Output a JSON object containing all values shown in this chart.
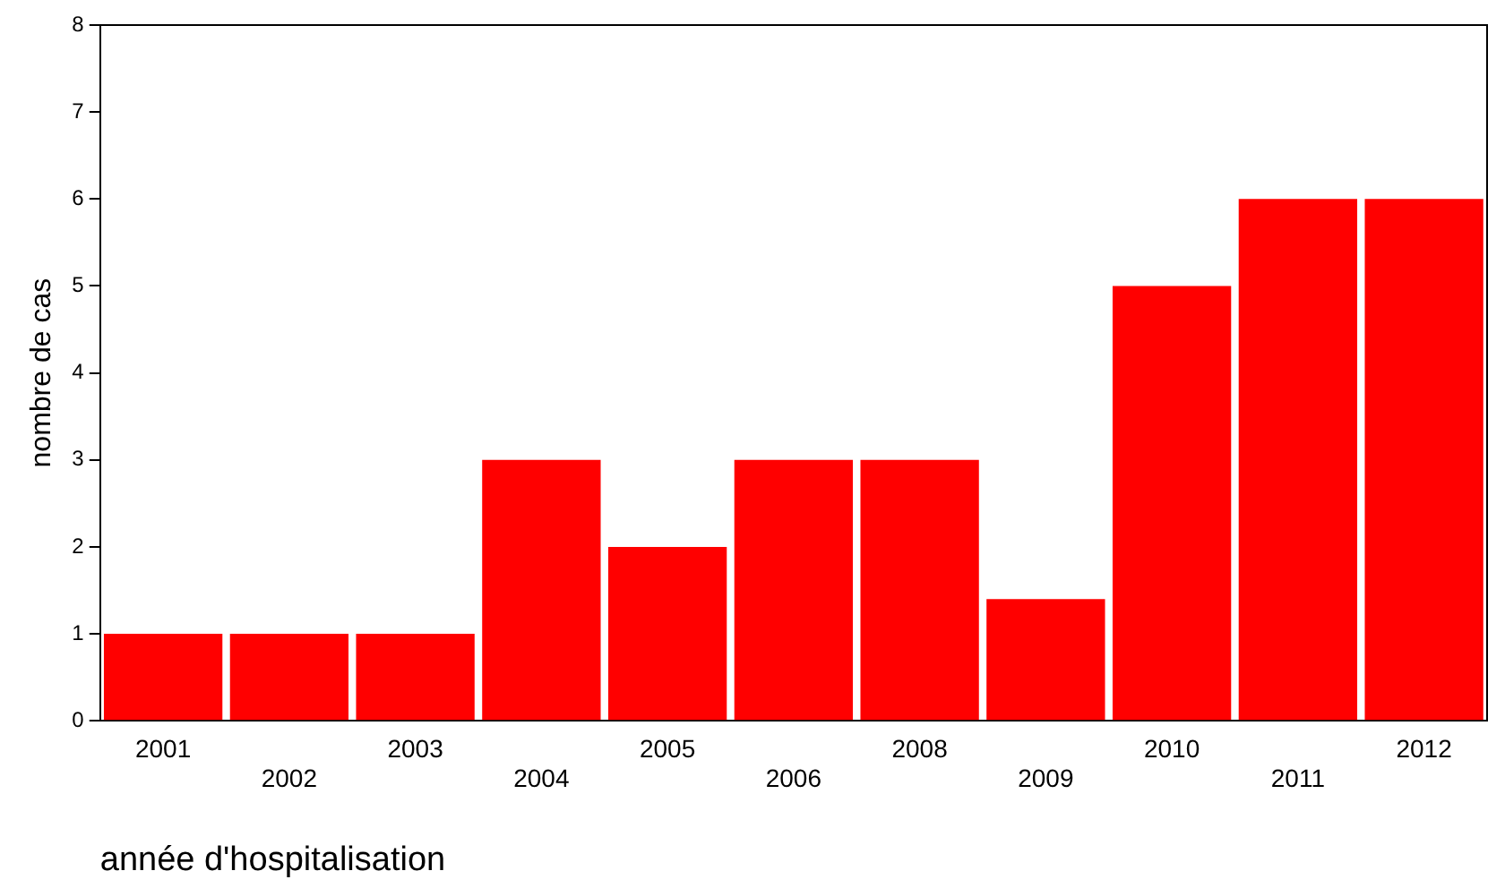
{
  "chart_data": {
    "type": "bar",
    "xlabel": "année d'hospitalisation",
    "ylabel": "nombre de cas",
    "categories": [
      "2001",
      "2002",
      "2003",
      "2004",
      "2005",
      "2006",
      "2008",
      "2009",
      "2010",
      "2011",
      "2012"
    ],
    "values": [
      1,
      1,
      1,
      3,
      2,
      3,
      3,
      1.4,
      5,
      6,
      6
    ],
    "color": "#ff0000",
    "ylim": [
      0,
      8
    ],
    "yticks": [
      0,
      1,
      2,
      3,
      4,
      5,
      6,
      7,
      8
    ],
    "grid": false,
    "legend": false
  }
}
